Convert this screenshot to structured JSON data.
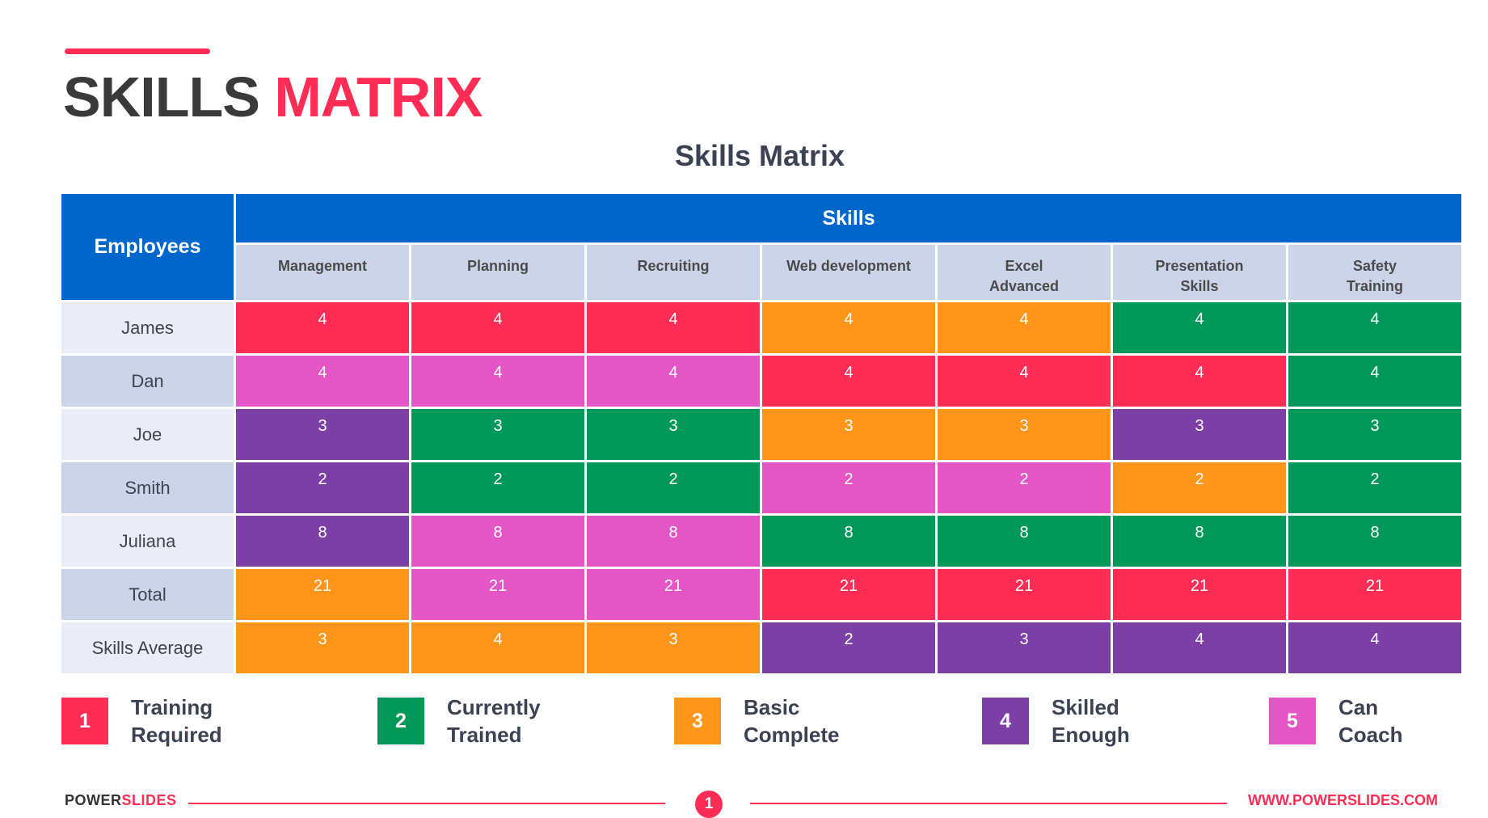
{
  "header": {
    "title_part1": "SKILLS",
    "title_part2": "MATRIX",
    "accent": "#ff2d55"
  },
  "table": {
    "caption": "Skills Matrix",
    "employees_label": "Employees",
    "skills_label": "Skills",
    "header_color": "#0066cc",
    "skills": [
      "Management",
      "Planning",
      "Recruiting",
      "Web development",
      "Excel\nAdvanced",
      "Presentation\nSkills",
      "Safety\nTraining"
    ],
    "rows": [
      {
        "name": "James",
        "values": [
          "4",
          "4",
          "4",
          "4",
          "4",
          "4",
          "4"
        ],
        "colors": [
          "red",
          "red",
          "red",
          "orange",
          "orange",
          "green",
          "green"
        ]
      },
      {
        "name": "Dan",
        "values": [
          "4",
          "4",
          "4",
          "4",
          "4",
          "4",
          "4"
        ],
        "colors": [
          "pink",
          "pink",
          "pink",
          "red",
          "red",
          "red",
          "green"
        ]
      },
      {
        "name": "Joe",
        "values": [
          "3",
          "3",
          "3",
          "3",
          "3",
          "3",
          "3"
        ],
        "colors": [
          "purple",
          "green",
          "green",
          "orange",
          "orange",
          "purple",
          "green"
        ]
      },
      {
        "name": "Smith",
        "values": [
          "2",
          "2",
          "2",
          "2",
          "2",
          "2",
          "2"
        ],
        "colors": [
          "purple",
          "green",
          "green",
          "pink",
          "pink",
          "orange",
          "green"
        ]
      },
      {
        "name": "Juliana",
        "values": [
          "8",
          "8",
          "8",
          "8",
          "8",
          "8",
          "8"
        ],
        "colors": [
          "purple",
          "pink",
          "pink",
          "green",
          "green",
          "green",
          "green"
        ]
      },
      {
        "name": "Total",
        "values": [
          "21",
          "21",
          "21",
          "21",
          "21",
          "21",
          "21"
        ],
        "colors": [
          "orange",
          "pink",
          "pink",
          "red",
          "red",
          "red",
          "red"
        ]
      },
      {
        "name": "Skills Average",
        "values": [
          "3",
          "4",
          "3",
          "2",
          "3",
          "4",
          "4"
        ],
        "colors": [
          "orange",
          "orange",
          "orange",
          "purple",
          "purple",
          "purple",
          "purple"
        ]
      }
    ]
  },
  "palette": {
    "red": "#ff2d55",
    "green": "#00985a",
    "orange": "#ff9619",
    "purple": "#7b3fa5",
    "pink": "#e455c6"
  },
  "legend": [
    {
      "num": "1",
      "label": "Training\nRequired",
      "color": "red"
    },
    {
      "num": "2",
      "label": "Currently\nTrained",
      "color": "green"
    },
    {
      "num": "3",
      "label": "Basic\nComplete",
      "color": "orange"
    },
    {
      "num": "4",
      "label": "Skilled\nEnough",
      "color": "purple"
    },
    {
      "num": "5",
      "label": "Can\nCoach",
      "color": "pink"
    }
  ],
  "footer": {
    "brand_part1": "POWER",
    "brand_part2": "SLIDES",
    "page": "1",
    "url": "WWW.POWERSLIDES.COM"
  }
}
